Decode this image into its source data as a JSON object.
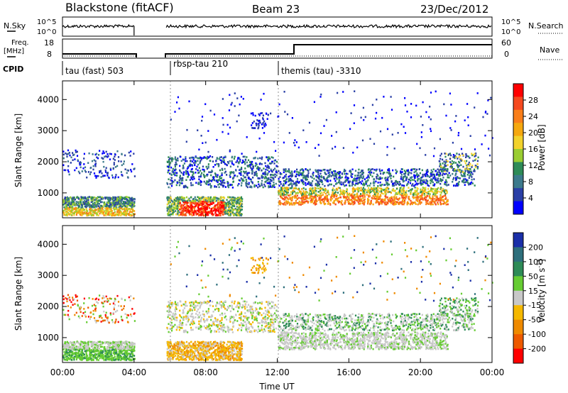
{
  "header": {
    "station": "Blackstone (fitACF)",
    "beam": "Beam 23",
    "date": "23/Dec/2012"
  },
  "top_panels": {
    "nsky_label": "N.Sky",
    "nsky_tick_hi": "10^5",
    "nsky_tick_lo": "10^0",
    "nsearch_label": "N.Search",
    "freq_label_1": "Freq.",
    "freq_label_2": "[MHz]",
    "freq_tick_hi": "18",
    "freq_tick_lo": "8",
    "nave_label": "Nave",
    "nave_tick_hi": "60",
    "nave_tick_lo": "0",
    "cpid_label": "CPID"
  },
  "cpid_segments": [
    {
      "start_hour": 0.0,
      "label": "tau (fast) 503"
    },
    {
      "start_hour": 5.8,
      "label": "rbsp-tau 210"
    },
    {
      "start_hour": 12.0,
      "label": "themis (tau) -3310"
    }
  ],
  "colorbars": {
    "power": {
      "title": "Power [dB]",
      "ticks": [
        "28",
        "24",
        "20",
        "16",
        "12",
        "8",
        "4"
      ],
      "colors": [
        "#ff0000",
        "#f5491f",
        "#f97e1a",
        "#f5a80f",
        "#f2d22c",
        "#9acd32",
        "#2e8b57",
        "#3c7a8c",
        "#2a3fa6",
        "#0000ff"
      ]
    },
    "velocity": {
      "title": "Velocity [m s^-1]",
      "ticks": [
        "200",
        "100",
        "50",
        "15",
        "-15",
        "-50",
        "-100",
        "-200"
      ],
      "colors": [
        "#1a2fa8",
        "#2e6f7c",
        "#2e8b57",
        "#66cc33",
        "#c8c8c8",
        "#f5b800",
        "#ef8a00",
        "#ee5a00",
        "#ff0000"
      ]
    }
  },
  "chart_data": [
    {
      "type": "heatmap",
      "title": "Power",
      "ylabel": "Slant Range [km]",
      "xlabel": "Time UT",
      "x_ticks": [
        "00:00",
        "04:00",
        "08:00",
        "12:00",
        "16:00",
        "20:00",
        "00:00"
      ],
      "y_ticks": [
        "1000",
        "2000",
        "3000",
        "4000"
      ],
      "xlim_hours": [
        0,
        24
      ],
      "ylim_km": [
        200,
        4600
      ],
      "data_gap_hours": [
        4.0,
        5.8
      ],
      "features": [
        {
          "time_range": [
            0,
            4
          ],
          "range_km": [
            300,
            800
          ],
          "power_db": "4-24"
        },
        {
          "time_range": [
            6.5,
            9
          ],
          "range_km": [
            300,
            700
          ],
          "power_db": "24-32"
        },
        {
          "time_range": [
            13,
            21
          ],
          "range_km": [
            600,
            1100
          ],
          "power_db": "16-24"
        },
        {
          "time_range": [
            5.8,
            23
          ],
          "range_km": [
            1400,
            2200
          ],
          "power_db": "4-12"
        }
      ]
    },
    {
      "type": "heatmap",
      "title": "Velocity",
      "ylabel": "Slant Range [km]",
      "xlabel": "Time UT",
      "x_ticks": [
        "00:00",
        "04:00",
        "08:00",
        "12:00",
        "16:00",
        "20:00",
        "00:00"
      ],
      "y_ticks": [
        "1000",
        "2000",
        "3000",
        "4000"
      ],
      "xlim_hours": [
        0,
        24
      ],
      "ylim_km": [
        200,
        4600
      ],
      "data_gap_hours": [
        4.0,
        5.8
      ],
      "features": [
        {
          "time_range": [
            0,
            4
          ],
          "range_km": [
            300,
            900
          ],
          "velocity_ms": "15-50"
        },
        {
          "time_range": [
            6,
            10
          ],
          "range_km": [
            300,
            900
          ],
          "velocity_ms": "-50 to -100"
        },
        {
          "time_range": [
            12,
            21
          ],
          "range_km": [
            600,
            1400
          ],
          "velocity_ms": "-15 to 15"
        }
      ]
    }
  ],
  "xaxis_title": "Time UT"
}
